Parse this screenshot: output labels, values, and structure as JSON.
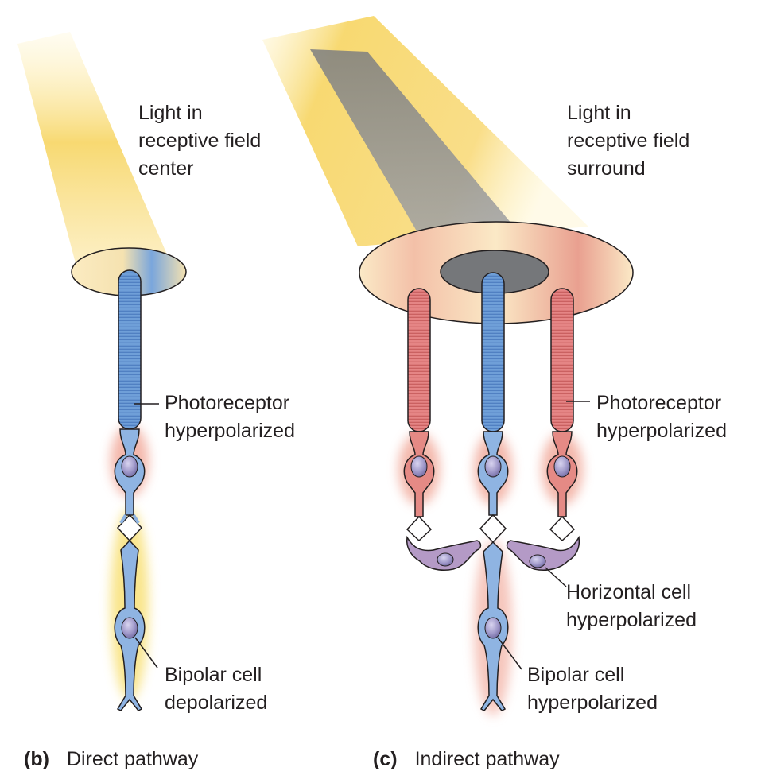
{
  "panel_b": {
    "light_label": [
      "Light in",
      "receptive field",
      "center"
    ],
    "photoreceptor_label": [
      "Photoreceptor",
      "hyperpolarized"
    ],
    "bipolar_label": [
      "Bipolar cell",
      "depolarized"
    ],
    "caption_letter": "(b)",
    "caption_text": "Direct pathway"
  },
  "panel_c": {
    "light_label": [
      "Light in",
      "receptive field",
      "surround"
    ],
    "photoreceptor_label": [
      "Photoreceptor",
      "hyperpolarized"
    ],
    "horizontal_label": [
      "Horizontal cell",
      "hyperpolarized"
    ],
    "bipolar_label": [
      "Bipolar cell",
      "hyperpolarized"
    ],
    "caption_letter": "(c)",
    "caption_text": "Indirect pathway"
  },
  "colors": {
    "light_yellow": "#f7d76a",
    "shadow_gray": "#9a9b9d",
    "receptor_blue": "#6f9fd8",
    "receptor_red": "#e07878",
    "horizontal_purple": "#b49ac6",
    "nucleus": "#8f88bd",
    "glow_red": "#f0a090",
    "glow_yellow": "#f8df70"
  }
}
